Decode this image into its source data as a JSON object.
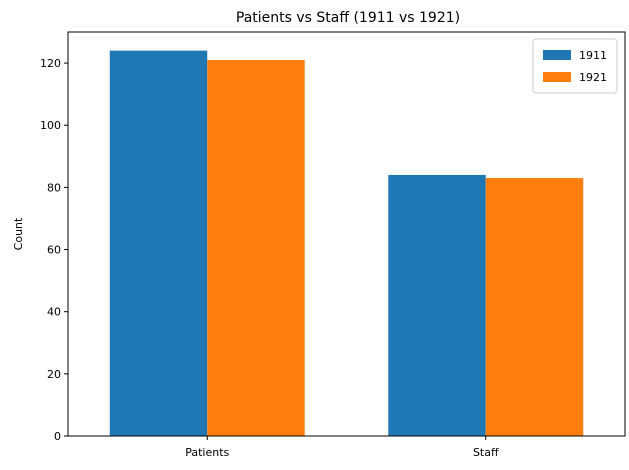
{
  "chart_data": {
    "type": "bar",
    "title": "Patients vs Staff (1911 vs 1921)",
    "xlabel": "",
    "ylabel": "Count",
    "categories": [
      "Patients",
      "Staff"
    ],
    "series": [
      {
        "name": "1911",
        "values": [
          124,
          84
        ],
        "color": "#1f77b4"
      },
      {
        "name": "1921",
        "values": [
          121,
          83
        ],
        "color": "#ff7f0e"
      }
    ],
    "ylim": [
      0,
      130
    ],
    "yticks": [
      "0",
      "20",
      "40",
      "60",
      "80",
      "100",
      "120"
    ],
    "legend_position": "top-right",
    "grid": false
  }
}
